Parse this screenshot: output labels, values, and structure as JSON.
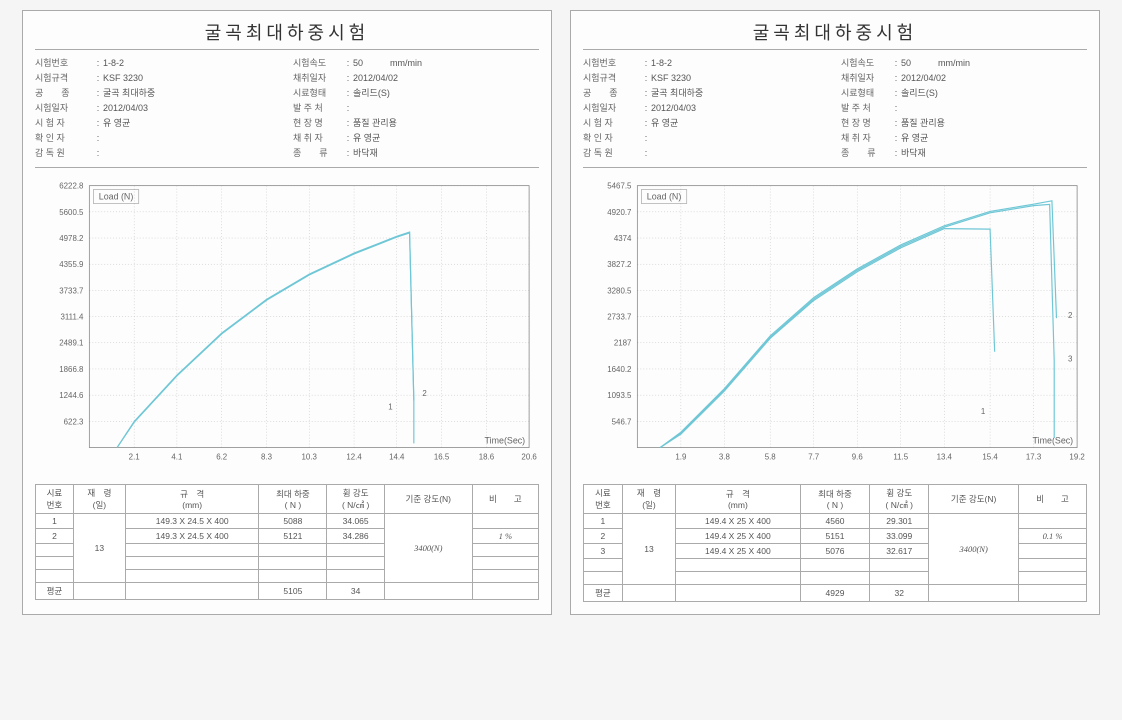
{
  "reports": [
    {
      "title": "굴곡최대하중시험",
      "meta_left": [
        {
          "label": "시험번호",
          "value": "1-8-2"
        },
        {
          "label": "시험규격",
          "value": "KSF 3230"
        },
        {
          "label": "공　　종",
          "value": "굴곡 최대하중"
        },
        {
          "label": "시험일자",
          "value": "2012/04/03"
        },
        {
          "label": "시 험 자",
          "value": "유 영균"
        },
        {
          "label": "확 인 자",
          "value": ""
        },
        {
          "label": "감 독 원",
          "value": ""
        }
      ],
      "meta_right": [
        {
          "label": "시험속도",
          "value": "50　　　mm/min"
        },
        {
          "label": "채취일자",
          "value": "2012/04/02"
        },
        {
          "label": "시료형태",
          "value": "솔리드(S)"
        },
        {
          "label": "발 주 처",
          "value": ""
        },
        {
          "label": "현 장 명",
          "value": "품질 관리용"
        },
        {
          "label": "채 취 자",
          "value": "유 영균"
        },
        {
          "label": "종　　류",
          "value": "바닥재"
        }
      ],
      "chart": {
        "ylabel": "Load (N)",
        "xlabel": "Time(Sec)",
        "yticks": [
          622.3,
          1244.6,
          1866.8,
          2489.1,
          3111.4,
          3733.7,
          4355.9,
          4978.2,
          5600.5,
          6222.8
        ],
        "xticks": [
          2.1,
          4.1,
          6.2,
          8.3,
          10.3,
          12.4,
          14.4,
          16.5,
          18.6,
          20.6
        ],
        "xmax": 20.6,
        "ymax": 6222.8,
        "curve_color": "#6fc7d6",
        "grid_color": "#bbbbbb",
        "curves": [
          [
            [
              1.3,
              0
            ],
            [
              2.1,
              600
            ],
            [
              4.1,
              1700
            ],
            [
              6.2,
              2700
            ],
            [
              8.3,
              3500
            ],
            [
              10.3,
              4100
            ],
            [
              12.4,
              4600
            ],
            [
              14.4,
              5000
            ],
            [
              15.0,
              5100
            ],
            [
              15.2,
              1100
            ],
            [
              15.2,
              100
            ]
          ],
          [
            [
              1.3,
              0
            ],
            [
              2.1,
              620
            ],
            [
              4.1,
              1720
            ],
            [
              6.2,
              2720
            ],
            [
              8.3,
              3520
            ],
            [
              10.3,
              4120
            ],
            [
              12.4,
              4620
            ],
            [
              14.4,
              5020
            ],
            [
              15.0,
              5120
            ],
            [
              15.2,
              1120
            ]
          ]
        ],
        "series_labels": [
          {
            "n": "1",
            "x": 14.0,
            "y": 900
          },
          {
            "n": "2",
            "x": 15.6,
            "y": 1220
          }
        ]
      },
      "table": {
        "headers": [
          "시료\n번호",
          "재　령\n(일)",
          "규　격\n(mm)",
          "최대 하중\n( N )",
          "휨 강도\n( N/㎠ )",
          "기준 강도(N)",
          "비　　고"
        ],
        "rows": [
          [
            "1",
            "",
            "149.3 X 24.5 X 400",
            "5088",
            "34.065",
            "",
            ""
          ],
          [
            "2",
            "",
            "149.3 X 24.5 X 400",
            "5121",
            "34.286",
            "",
            "1 %"
          ]
        ],
        "age_value": "13",
        "handwritten_std": "3400(N)",
        "avg": {
          "label": "평균",
          "max_load": "5105",
          "strength": "34"
        }
      }
    },
    {
      "title": "굴곡최대하중시험",
      "meta_left": [
        {
          "label": "시험번호",
          "value": "1-8-2"
        },
        {
          "label": "시험규격",
          "value": "KSF 3230"
        },
        {
          "label": "공　　종",
          "value": "굴곡 최대하중"
        },
        {
          "label": "시험일자",
          "value": "2012/04/03"
        },
        {
          "label": "시 험 자",
          "value": "유 영균"
        },
        {
          "label": "확 인 자",
          "value": ""
        },
        {
          "label": "감 독 원",
          "value": ""
        }
      ],
      "meta_right": [
        {
          "label": "시험속도",
          "value": "50　　　mm/min"
        },
        {
          "label": "채취일자",
          "value": "2012/04/02"
        },
        {
          "label": "시료형태",
          "value": "솔리드(S)"
        },
        {
          "label": "발 주 처",
          "value": ""
        },
        {
          "label": "현 장 명",
          "value": "품질 관리용"
        },
        {
          "label": "채 취 자",
          "value": "유 영균"
        },
        {
          "label": "종　　류",
          "value": "바닥재"
        }
      ],
      "chart": {
        "ylabel": "Load (N)",
        "xlabel": "Time(Sec)",
        "yticks": [
          546.7,
          1093.5,
          1640.2,
          2187.0,
          2733.7,
          3280.5,
          3827.2,
          4374.0,
          4920.7,
          5467.5
        ],
        "xticks": [
          1.9,
          3.8,
          5.8,
          7.7,
          9.6,
          11.5,
          13.4,
          15.4,
          17.3,
          19.2
        ],
        "xmax": 19.2,
        "ymax": 5467.5,
        "curve_color": "#6fc7d6",
        "grid_color": "#bbbbbb",
        "curves": [
          [
            [
              1.0,
              0
            ],
            [
              1.9,
              300
            ],
            [
              3.8,
              1200
            ],
            [
              5.8,
              2300
            ],
            [
              7.7,
              3100
            ],
            [
              9.6,
              3700
            ],
            [
              11.5,
              4200
            ],
            [
              13.4,
              4600
            ],
            [
              15.4,
              4900
            ],
            [
              17.3,
              5050
            ],
            [
              18.0,
              5076
            ],
            [
              18.2,
              1800
            ],
            [
              18.2,
              200
            ]
          ],
          [
            [
              1.0,
              0
            ],
            [
              1.9,
              320
            ],
            [
              3.8,
              1230
            ],
            [
              5.8,
              2330
            ],
            [
              7.7,
              3130
            ],
            [
              9.6,
              3730
            ],
            [
              11.5,
              4230
            ],
            [
              13.4,
              4630
            ],
            [
              15.4,
              4930
            ],
            [
              17.3,
              5080
            ],
            [
              18.1,
              5151
            ],
            [
              18.3,
              2700
            ]
          ],
          [
            [
              1.0,
              0
            ],
            [
              1.9,
              280
            ],
            [
              3.8,
              1180
            ],
            [
              5.8,
              2280
            ],
            [
              7.7,
              3070
            ],
            [
              9.6,
              3670
            ],
            [
              11.5,
              4170
            ],
            [
              13.4,
              4570
            ],
            [
              15.4,
              4560
            ],
            [
              15.6,
              2000
            ]
          ]
        ],
        "series_labels": [
          {
            "n": "1",
            "x": 15.0,
            "y": 700
          },
          {
            "n": "2",
            "x": 18.8,
            "y": 2700
          },
          {
            "n": "3",
            "x": 18.8,
            "y": 1800
          }
        ]
      },
      "table": {
        "headers": [
          "시료\n번호",
          "재　령\n(일)",
          "규　격\n(mm)",
          "최대 하중\n( N )",
          "휨 강도\n( N/㎠ )",
          "기준 강도(N)",
          "비　　고"
        ],
        "rows": [
          [
            "1",
            "",
            "149.4 X 25 X 400",
            "4560",
            "29.301",
            "",
            ""
          ],
          [
            "2",
            "",
            "149.4 X 25 X 400",
            "5151",
            "33.099",
            "",
            "0.1 %"
          ],
          [
            "3",
            "",
            "149.4 X 25 X 400",
            "5076",
            "32.617",
            "",
            ""
          ]
        ],
        "age_value": "13",
        "handwritten_std": "3400(N)",
        "avg": {
          "label": "평균",
          "max_load": "4929",
          "strength": "32"
        }
      }
    }
  ]
}
